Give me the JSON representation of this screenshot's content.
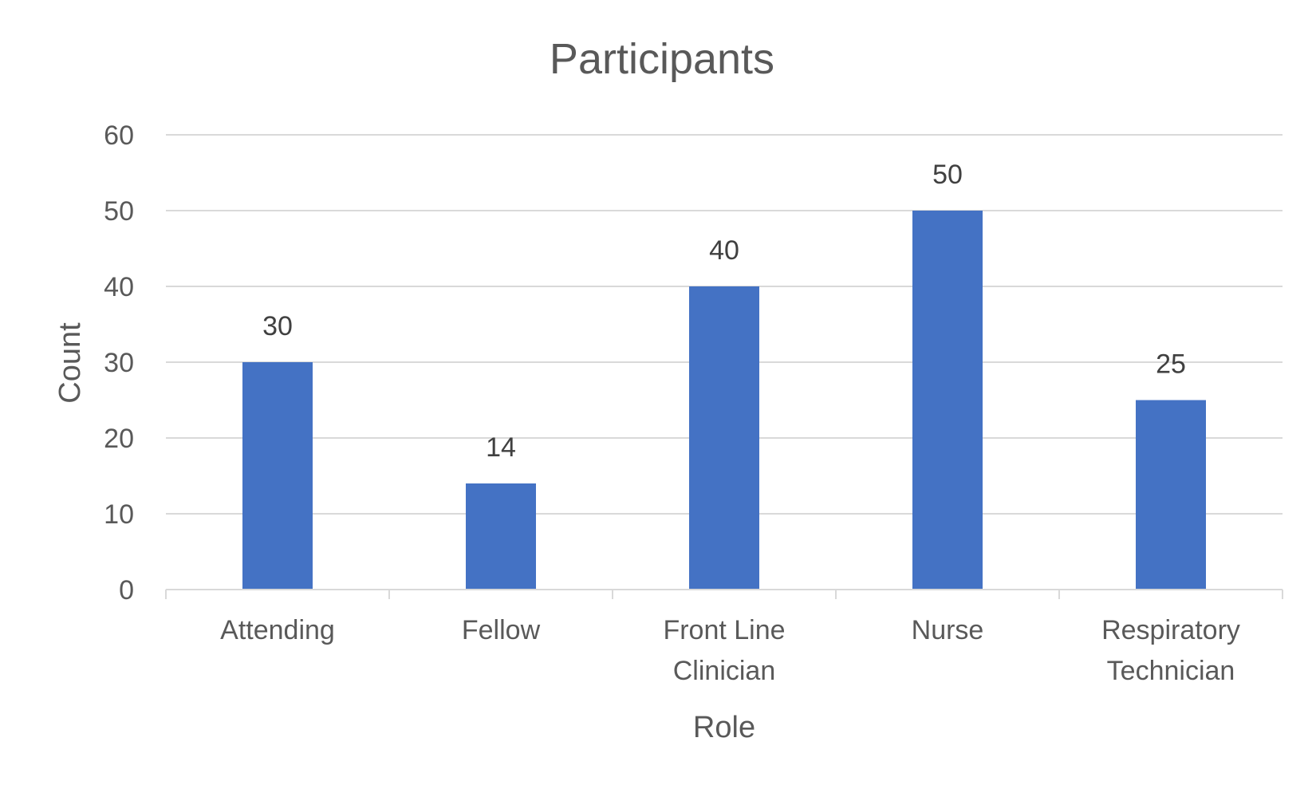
{
  "chart_data": {
    "type": "bar",
    "title": "Participants",
    "xlabel": "Role",
    "ylabel": "Count",
    "categories": [
      [
        "Attending"
      ],
      [
        "Fellow"
      ],
      [
        "Front Line",
        "Clinician"
      ],
      [
        "Nurse"
      ],
      [
        "Respiratory",
        "Technician"
      ]
    ],
    "values": [
      30,
      14,
      40,
      50,
      25
    ],
    "ylim": [
      0,
      60
    ],
    "yticks": [
      0,
      10,
      20,
      30,
      40,
      50,
      60
    ],
    "grid": true,
    "data_labels": true,
    "legend": "none",
    "bar_color": "#4472c4"
  }
}
